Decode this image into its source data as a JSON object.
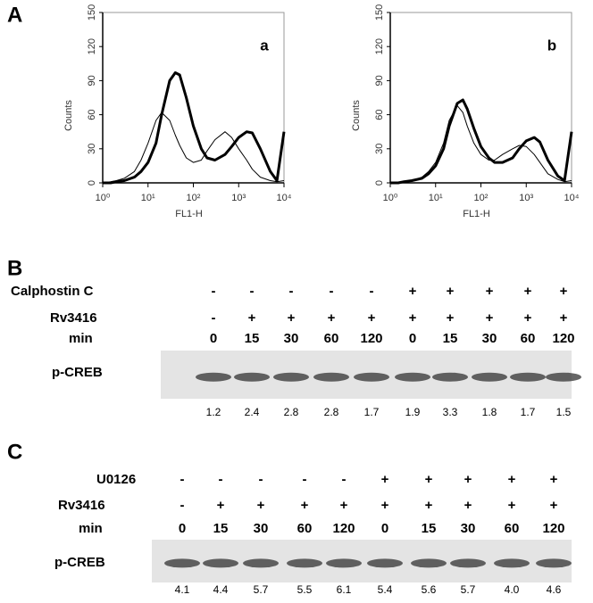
{
  "panel_A": "A",
  "chart_data": [
    {
      "type": "line",
      "label": "a",
      "ylabel": "Counts",
      "xlabel": "FL1-H",
      "log_x": true,
      "xlim": [
        1,
        10000
      ],
      "xticks": [
        {
          "value": 1,
          "label": "10⁰"
        },
        {
          "value": 10,
          "label": "10¹"
        },
        {
          "value": 100,
          "label": "10²"
        },
        {
          "value": 1000,
          "label": "10³"
        },
        {
          "value": 10000,
          "label": "10⁴"
        }
      ],
      "ylim": [
        0,
        150
      ],
      "yticks": [
        0,
        30,
        60,
        90,
        120,
        150
      ],
      "x": [
        1,
        1.5,
        2,
        3,
        5,
        7,
        10,
        15,
        20,
        30,
        40,
        50,
        70,
        100,
        150,
        200,
        300,
        500,
        700,
        1000,
        1500,
        2000,
        3000,
        5000,
        7000,
        10000
      ],
      "series": [
        {
          "color": "#000000",
          "line_width": 1,
          "values": [
            0,
            1,
            2,
            4,
            10,
            20,
            35,
            55,
            62,
            55,
            42,
            33,
            22,
            18,
            20,
            28,
            38,
            45,
            40,
            30,
            20,
            12,
            5,
            2,
            1,
            2
          ]
        },
        {
          "color": "#000000",
          "line_width": 3,
          "values": [
            0,
            0,
            1,
            2,
            5,
            10,
            18,
            35,
            60,
            90,
            97,
            95,
            75,
            50,
            30,
            22,
            20,
            25,
            32,
            40,
            45,
            44,
            30,
            10,
            2,
            45
          ]
        }
      ]
    },
    {
      "type": "line",
      "label": "b",
      "ylabel": "Counts",
      "xlabel": "FL1-H",
      "log_x": true,
      "xlim": [
        1,
        10000
      ],
      "xticks": [
        {
          "value": 1,
          "label": "10⁰"
        },
        {
          "value": 10,
          "label": "10¹"
        },
        {
          "value": 100,
          "label": "10²"
        },
        {
          "value": 1000,
          "label": "10³"
        },
        {
          "value": 10000,
          "label": "10⁴"
        }
      ],
      "ylim": [
        0,
        150
      ],
      "yticks": [
        0,
        30,
        60,
        90,
        120,
        150
      ],
      "x": [
        1,
        1.5,
        2,
        3,
        5,
        7,
        10,
        15,
        20,
        30,
        40,
        50,
        70,
        100,
        150,
        200,
        300,
        500,
        700,
        1000,
        1500,
        2000,
        3000,
        5000,
        7000,
        10000
      ],
      "series": [
        {
          "color": "#000000",
          "line_width": 1,
          "values": [
            0,
            0,
            1,
            2,
            5,
            10,
            18,
            35,
            55,
            68,
            62,
            50,
            35,
            25,
            20,
            20,
            25,
            30,
            33,
            32,
            25,
            18,
            8,
            3,
            1,
            2
          ]
        },
        {
          "color": "#000000",
          "line_width": 3,
          "values": [
            0,
            0,
            1,
            2,
            4,
            8,
            15,
            30,
            50,
            70,
            73,
            65,
            48,
            32,
            22,
            18,
            18,
            22,
            30,
            37,
            40,
            36,
            20,
            6,
            2,
            45
          ]
        }
      ]
    }
  ],
  "blots": [
    {
      "panel": "B",
      "treatments": [
        {
          "label": "Calphostin C",
          "signs": [
            "-",
            "-",
            "-",
            "-",
            "-",
            "+",
            "+",
            "+",
            "+",
            "+"
          ]
        },
        {
          "label": "Rv3416",
          "signs": [
            "-",
            "+",
            "+",
            "+",
            "+",
            "+",
            "+",
            "+",
            "+",
            "+"
          ]
        }
      ],
      "time_label": "min",
      "times": [
        "0",
        "15",
        "30",
        "60",
        "120",
        "0",
        "15",
        "30",
        "60",
        "120"
      ],
      "band_label": "p-CREB",
      "densities": [
        "1.2",
        "2.4",
        "2.8",
        "2.8",
        "1.7",
        "1.9",
        "3.3",
        "1.8",
        "1.7",
        "1.5"
      ]
    },
    {
      "panel": "C",
      "treatments": [
        {
          "label": "U0126",
          "signs": [
            "-",
            "-",
            "-",
            "-",
            "-",
            "+",
            "+",
            "+",
            "+",
            "+"
          ]
        },
        {
          "label": "Rv3416",
          "signs": [
            "-",
            "+",
            "+",
            "+",
            "+",
            "+",
            "+",
            "+",
            "+",
            "+"
          ]
        }
      ],
      "time_label": "min",
      "times": [
        "0",
        "15",
        "30",
        "60",
        "120",
        "0",
        "15",
        "30",
        "60",
        "120"
      ],
      "band_label": "p-CREB",
      "densities": [
        "4.1",
        "4.4",
        "5.7",
        "5.5",
        "6.1",
        "5.4",
        "5.6",
        "5.7",
        "4.0",
        "4.6"
      ]
    }
  ]
}
